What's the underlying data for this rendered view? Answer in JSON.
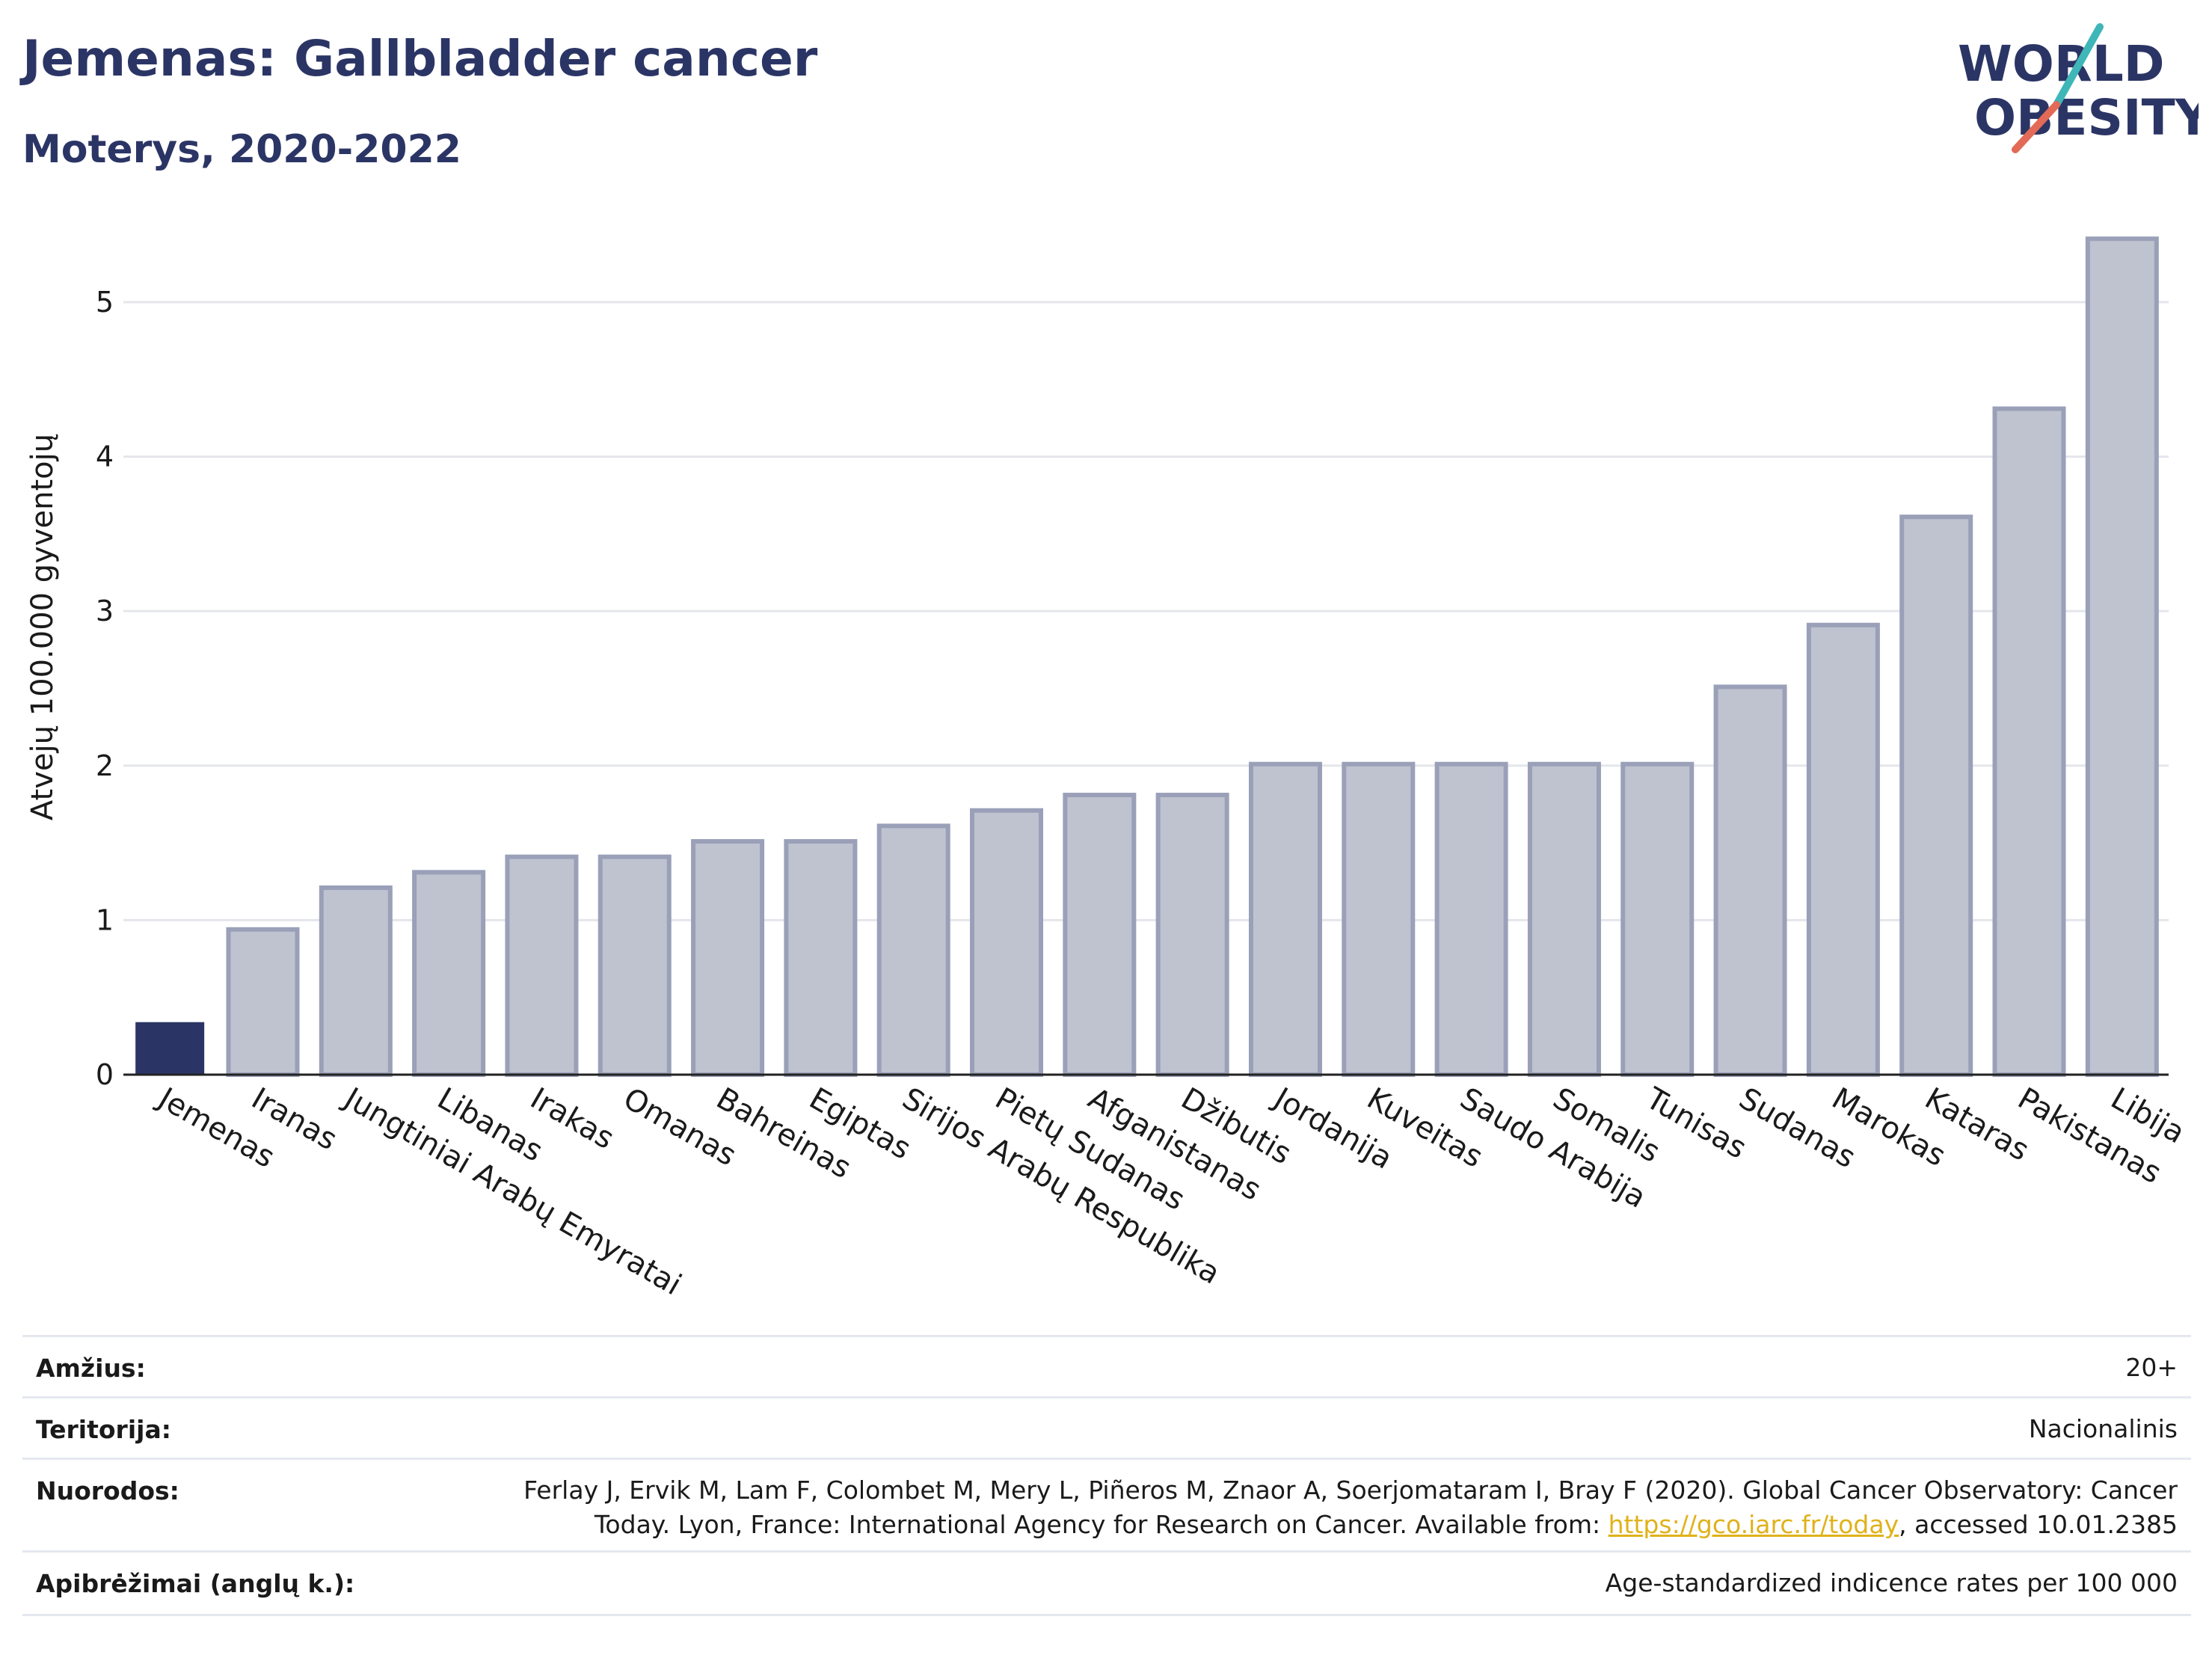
{
  "header": {
    "title": "Jemenas: Gallbladder cancer",
    "subtitle": "Moterys, 2020-2022",
    "logo_line1": "WORLD",
    "logo_line2": "OBESITY"
  },
  "chart_data": {
    "type": "bar",
    "ylabel": "Atvejų 100.000 gyventojų",
    "xlabel": "",
    "ylim": [
      0,
      5.6
    ],
    "yticks": [
      0,
      1,
      2,
      3,
      4,
      5
    ],
    "grid": true,
    "categories": [
      "Jemenas",
      "Iranas",
      "Jungtiniai Arabų Emyratai",
      "Libanas",
      "Irakas",
      "Omanas",
      "Bahreinas",
      "Egiptas",
      "Sirijos Arabų Respublika",
      "Pietų Sudanas",
      "Afganistanas",
      "Džibutis",
      "Jordanija",
      "Kuveitas",
      "Saudo Arabija",
      "Somalis",
      "Tunisas",
      "Sudanas",
      "Marokas",
      "Kataras",
      "Pakistanas",
      "Libija"
    ],
    "values": [
      0.34,
      0.94,
      1.21,
      1.31,
      1.41,
      1.41,
      1.51,
      1.51,
      1.61,
      1.71,
      1.81,
      1.81,
      2.01,
      2.01,
      2.01,
      2.01,
      2.01,
      2.51,
      2.91,
      3.61,
      4.31,
      5.41
    ],
    "highlight": "Jemenas",
    "colors": {
      "highlight": "#2b3565",
      "bar": "#bfc3d0",
      "bar_edge": "#9aa0b8",
      "grid": "#e4e6ec",
      "axis": "#222222"
    }
  },
  "info": {
    "age_label": "Amžius:",
    "age_value": "20+",
    "territory_label": "Teritorija:",
    "territory_value": "Nacionalinis",
    "refs_label": "Nuorodos:",
    "refs_line1": "Ferlay J, Ervik M, Lam F, Colombet M, Mery L, Piñeros M, Znaor A, Soerjomataram I, Bray F (2020). Global Cancer Observatory: Cancer",
    "refs_line2_prefix": "Today. Lyon, France: International Agency for Research on Cancer. Available from: ",
    "refs_link": "https://gco.iarc.fr/today",
    "refs_line2_suffix": ", accessed 10.01.2385",
    "defs_label": "Apibrėžimai (anglų k.):",
    "defs_value": "Age-standardized indicence rates per 100 000"
  }
}
